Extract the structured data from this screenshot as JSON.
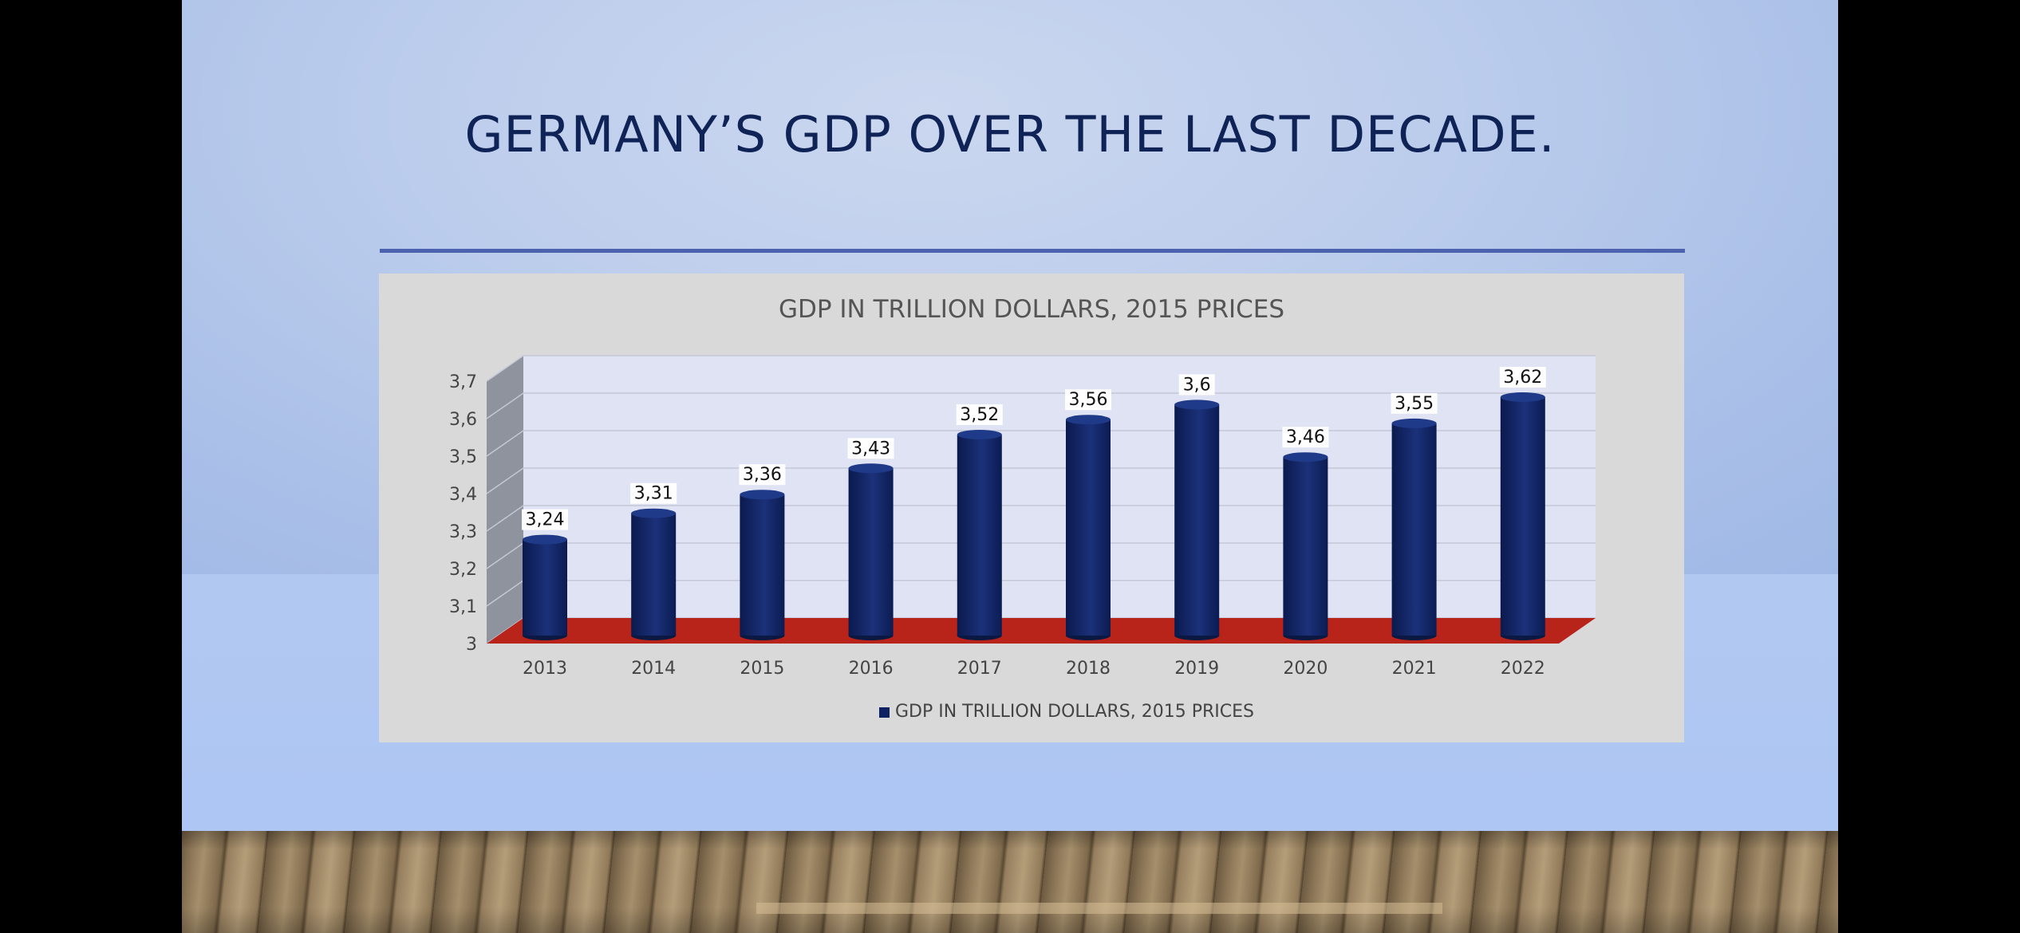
{
  "slide": {
    "title": "GERMANY’S GDP OVER THE LAST DECADE."
  },
  "colors": {
    "title": "#0f2356",
    "rule": "#4c62ae",
    "panel": "#d9d9d9",
    "plot_back": "#dfe3f3",
    "side_wall": "#8e939e",
    "floor": "#b8231a",
    "bar": "#0e2160",
    "bar_highlight": "#1f3a88"
  },
  "chart_data": {
    "type": "bar",
    "style": "3d-cylinder",
    "title": "GDP IN TRILLION DOLLARS, 2015 PRICES",
    "categories": [
      "2013",
      "2014",
      "2015",
      "2016",
      "2017",
      "2018",
      "2019",
      "2020",
      "2021",
      "2022"
    ],
    "series": [
      {
        "name": "GDP IN TRILLION DOLLARS, 2015 PRICES",
        "values": [
          3.24,
          3.31,
          3.36,
          3.43,
          3.52,
          3.56,
          3.6,
          3.46,
          3.55,
          3.62
        ],
        "data_labels": [
          "3,24",
          "3,31",
          "3,36",
          "3,43",
          "3,52",
          "3,56",
          "3,6",
          "3,46",
          "3,55",
          "3,62"
        ]
      }
    ],
    "ylim": [
      3,
      3.7
    ],
    "yticks": [
      3,
      3.1,
      3.2,
      3.3,
      3.4,
      3.5,
      3.6,
      3.7
    ],
    "ytick_labels": [
      "3",
      "3,1",
      "3,2",
      "3,3",
      "3,4",
      "3,5",
      "3,6",
      "3,7"
    ],
    "xlabel": "",
    "ylabel": "",
    "grid": true,
    "legend": {
      "position": "bottom",
      "entries": [
        "GDP IN TRILLION DOLLARS, 2015 PRICES"
      ]
    }
  }
}
